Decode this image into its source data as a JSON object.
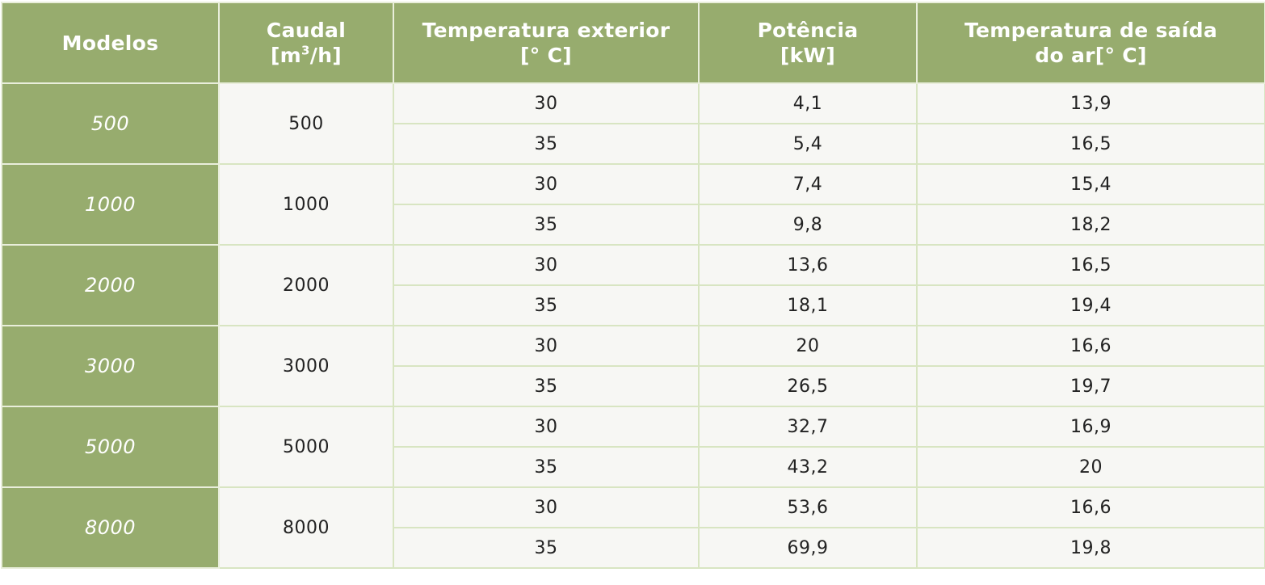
{
  "colors": {
    "header_bg": "#97ac6e",
    "header_text": "#ffffff",
    "cell_bg": "#f7f7f4",
    "cell_border": "#d8e5c2"
  },
  "headers": {
    "modelos": "Modelos",
    "caudal_1": "Caudal",
    "caudal_2_pre": "[m",
    "caudal_2_sup": "3",
    "caudal_2_post": "/h]",
    "temp_ext_1": "Temperatura exterior",
    "temp_ext_2": "[° C]",
    "potencia_1": "Potência",
    "potencia_2": "[kW]",
    "temp_saida_1": "Temperatura de saída",
    "temp_saida_2": "do ar[° C]"
  },
  "rows": [
    {
      "modelo": "500",
      "caudal": "500",
      "r": [
        {
          "t": "30",
          "p": "4,1",
          "s": "13,9"
        },
        {
          "t": "35",
          "p": "5,4",
          "s": "16,5"
        }
      ]
    },
    {
      "modelo": "1000",
      "caudal": "1000",
      "r": [
        {
          "t": "30",
          "p": "7,4",
          "s": "15,4"
        },
        {
          "t": "35",
          "p": "9,8",
          "s": "18,2"
        }
      ]
    },
    {
      "modelo": "2000",
      "caudal": "2000",
      "r": [
        {
          "t": "30",
          "p": "13,6",
          "s": "16,5"
        },
        {
          "t": "35",
          "p": "18,1",
          "s": "19,4"
        }
      ]
    },
    {
      "modelo": "3000",
      "caudal": "3000",
      "r": [
        {
          "t": "30",
          "p": "20",
          "s": "16,6"
        },
        {
          "t": "35",
          "p": "26,5",
          "s": "19,7"
        }
      ]
    },
    {
      "modelo": "5000",
      "caudal": "5000",
      "r": [
        {
          "t": "30",
          "p": "32,7",
          "s": "16,9"
        },
        {
          "t": "35",
          "p": "43,2",
          "s": "20"
        }
      ]
    },
    {
      "modelo": "8000",
      "caudal": "8000",
      "r": [
        {
          "t": "30",
          "p": "53,6",
          "s": "16,6"
        },
        {
          "t": "35",
          "p": "69,9",
          "s": "19,8"
        }
      ]
    }
  ]
}
